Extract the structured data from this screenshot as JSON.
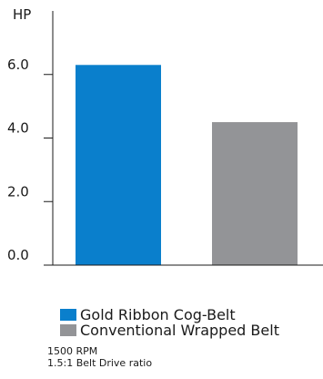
{
  "chart_data": {
    "type": "bar",
    "categories": [
      "Gold Ribbon Cog-Belt",
      "Conventional Wrapped Belt"
    ],
    "values": [
      6.3,
      4.5
    ],
    "colors": [
      "#0a7fcc",
      "#939497"
    ],
    "ylabel": "HP",
    "ylim": [
      0,
      8
    ],
    "yticks": [
      "0.0",
      "2.0",
      "4.0",
      "6.0"
    ],
    "ytick_values": [
      0,
      2,
      4,
      6
    ],
    "legend_position": "bottom-left",
    "grid": false
  },
  "notes": [
    "1500 RPM",
    "1.5:1 Belt Drive ratio"
  ]
}
